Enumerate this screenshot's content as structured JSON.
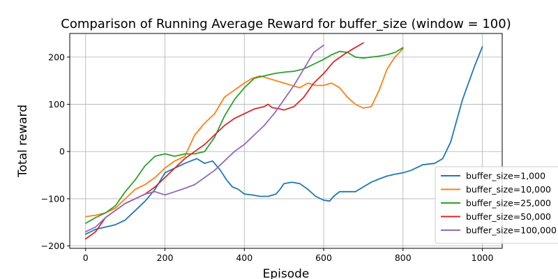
{
  "chart_data": {
    "type": "line",
    "title": "Comparison of Running Average Reward for buffer_size (window = 100)",
    "xlabel": "Episode",
    "ylabel": "Total reward",
    "xlim": [
      -40,
      1050
    ],
    "ylim": [
      -205,
      250
    ],
    "xticks": [
      0,
      200,
      400,
      600,
      800,
      1000
    ],
    "yticks": [
      -200,
      -100,
      0,
      100,
      200
    ],
    "xtick_labels": [
      "0",
      "200",
      "400",
      "600",
      "800",
      "1000"
    ],
    "ytick_labels": [
      "−200",
      "−100",
      "0",
      "100",
      "200"
    ],
    "grid": true,
    "legend_position": "lower-right",
    "series": [
      {
        "name": "buffer_size=1,000",
        "color": "#1f77b4",
        "x": [
          0,
          25,
          50,
          75,
          100,
          125,
          150,
          175,
          200,
          225,
          250,
          265,
          280,
          300,
          320,
          340,
          355,
          370,
          385,
          400,
          420,
          440,
          460,
          480,
          490,
          500,
          520,
          540,
          560,
          580,
          600,
          615,
          625,
          640,
          660,
          680,
          700,
          720,
          740,
          760,
          780,
          800,
          820,
          850,
          880,
          900,
          920,
          950,
          980,
          1000
        ],
        "y": [
          -175,
          -165,
          -160,
          -155,
          -145,
          -125,
          -105,
          -80,
          -45,
          -35,
          -25,
          -20,
          -15,
          -25,
          -20,
          -40,
          -60,
          -75,
          -80,
          -90,
          -92,
          -95,
          -95,
          -90,
          -80,
          -68,
          -65,
          -68,
          -80,
          -95,
          -103,
          -105,
          -95,
          -85,
          -85,
          -85,
          -75,
          -65,
          -58,
          -52,
          -48,
          -45,
          -40,
          -28,
          -25,
          -15,
          20,
          110,
          180,
          222
        ]
      },
      {
        "name": "buffer_size=10,000",
        "color": "#ff7f0e",
        "x": [
          0,
          25,
          50,
          75,
          100,
          125,
          150,
          175,
          200,
          225,
          250,
          275,
          300,
          325,
          350,
          375,
          400,
          420,
          440,
          460,
          480,
          500,
          520,
          540,
          560,
          580,
          600,
          620,
          640,
          660,
          680,
          700,
          720,
          740,
          760,
          780,
          800
        ],
        "y": [
          -138,
          -135,
          -130,
          -120,
          -100,
          -80,
          -70,
          -55,
          -35,
          -20,
          -10,
          35,
          60,
          80,
          115,
          130,
          145,
          155,
          160,
          155,
          150,
          145,
          140,
          135,
          145,
          140,
          140,
          145,
          135,
          115,
          100,
          92,
          95,
          130,
          175,
          200,
          218
        ]
      },
      {
        "name": "buffer_size=25,000",
        "color": "#2ca02c",
        "x": [
          0,
          25,
          50,
          75,
          100,
          125,
          150,
          175,
          200,
          225,
          250,
          275,
          300,
          325,
          350,
          375,
          400,
          425,
          450,
          475,
          500,
          525,
          550,
          575,
          600,
          620,
          640,
          660,
          680,
          700,
          720,
          740,
          760,
          780,
          800
        ],
        "y": [
          -152,
          -140,
          -130,
          -115,
          -85,
          -60,
          -30,
          -10,
          -5,
          -10,
          -5,
          -5,
          0,
          30,
          75,
          110,
          135,
          155,
          160,
          165,
          168,
          170,
          175,
          185,
          195,
          205,
          212,
          210,
          200,
          198,
          200,
          202,
          205,
          210,
          220
        ]
      },
      {
        "name": "buffer_size=50,000",
        "color": "#d62728",
        "x": [
          0,
          25,
          50,
          75,
          100,
          125,
          150,
          175,
          200,
          225,
          250,
          275,
          300,
          325,
          350,
          375,
          400,
          425,
          450,
          460,
          470,
          490,
          500,
          525,
          550,
          575,
          600,
          625,
          650,
          675,
          700
        ],
        "y": [
          -185,
          -170,
          -140,
          -125,
          -110,
          -100,
          -90,
          -75,
          -55,
          -35,
          -15,
          0,
          15,
          35,
          55,
          70,
          80,
          90,
          95,
          100,
          93,
          90,
          88,
          95,
          115,
          145,
          165,
          190,
          205,
          218,
          230
        ]
      },
      {
        "name": "buffer_size=100,000",
        "color": "#9467bd",
        "x": [
          0,
          25,
          50,
          75,
          100,
          125,
          150,
          175,
          200,
          225,
          250,
          275,
          300,
          325,
          350,
          375,
          400,
          425,
          450,
          475,
          500,
          525,
          550,
          575,
          600
        ],
        "y": [
          -170,
          -160,
          -140,
          -125,
          -110,
          -100,
          -90,
          -85,
          -92,
          -85,
          -78,
          -70,
          -55,
          -40,
          -20,
          0,
          15,
          35,
          55,
          80,
          110,
          140,
          175,
          210,
          225
        ]
      }
    ]
  }
}
